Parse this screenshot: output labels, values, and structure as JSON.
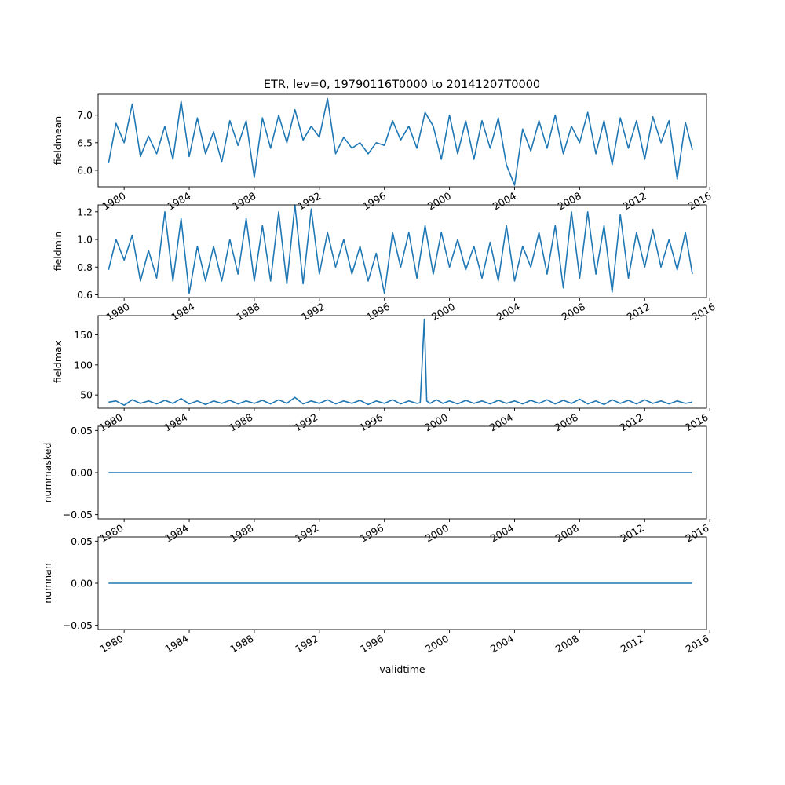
{
  "figure_title": "ETR, lev=0, 19790116T0000 to 20141207T0000",
  "chart_data": [
    {
      "type": "line",
      "ylabel": "fieldmean",
      "xlabel": "",
      "xlim": [
        1978.4,
        2015.8
      ],
      "ylim": [
        5.7,
        7.38
      ],
      "yticks": [
        6.0,
        6.5,
        7.0
      ],
      "yticklabels": [
        "6.0",
        "6.5",
        "7.0"
      ],
      "xticks": [
        1980,
        1984,
        1988,
        1992,
        1996,
        2000,
        2004,
        2008,
        2012,
        2016
      ],
      "xticklabels": [
        "1980",
        "1984",
        "1988",
        "1992",
        "1996",
        "2000",
        "2004",
        "2008",
        "2012",
        "2016"
      ],
      "series": [
        {
          "color": "#1f77b4",
          "x": [
            1979.04,
            1979.5,
            1980.0,
            1980.5,
            1981.0,
            1981.5,
            1982.0,
            1982.5,
            1983.0,
            1983.5,
            1984.0,
            1984.5,
            1985.0,
            1985.5,
            1986.0,
            1986.5,
            1987.0,
            1987.5,
            1988.0,
            1988.5,
            1989.0,
            1989.5,
            1990.0,
            1990.5,
            1991.0,
            1991.5,
            1992.0,
            1992.5,
            1993.0,
            1993.5,
            1994.0,
            1994.5,
            1995.0,
            1995.5,
            1996.0,
            1996.5,
            1997.0,
            1997.5,
            1998.0,
            1998.5,
            1999.0,
            1999.5,
            2000.0,
            2000.5,
            2001.0,
            2001.5,
            2002.0,
            2002.5,
            2003.0,
            2003.5,
            2004.0,
            2004.5,
            2005.0,
            2005.5,
            2006.0,
            2006.5,
            2007.0,
            2007.5,
            2008.0,
            2008.5,
            2009.0,
            2009.5,
            2010.0,
            2010.5,
            2011.0,
            2011.5,
            2012.0,
            2012.5,
            2013.0,
            2013.5,
            2014.0,
            2014.5,
            2014.93
          ],
          "y": [
            6.13,
            6.85,
            6.5,
            7.2,
            6.25,
            6.62,
            6.3,
            6.8,
            6.2,
            7.25,
            6.25,
            6.95,
            6.3,
            6.7,
            6.15,
            6.9,
            6.45,
            6.9,
            5.87,
            6.95,
            6.4,
            7.0,
            6.5,
            7.1,
            6.55,
            6.8,
            6.6,
            7.3,
            6.3,
            6.6,
            6.4,
            6.5,
            6.3,
            6.5,
            6.45,
            6.9,
            6.55,
            6.8,
            6.4,
            7.05,
            6.8,
            6.2,
            7.0,
            6.3,
            6.9,
            6.2,
            6.9,
            6.4,
            6.95,
            6.1,
            5.73,
            6.75,
            6.35,
            6.9,
            6.4,
            7.0,
            6.3,
            6.8,
            6.5,
            7.05,
            6.3,
            6.9,
            6.1,
            6.95,
            6.4,
            6.9,
            6.2,
            6.97,
            6.5,
            6.9,
            5.84,
            6.87,
            6.37
          ]
        }
      ]
    },
    {
      "type": "line",
      "ylabel": "fieldmin",
      "xlabel": "",
      "xlim": [
        1978.4,
        2015.8
      ],
      "ylim": [
        0.58,
        1.25
      ],
      "yticks": [
        0.6,
        0.8,
        1.0,
        1.2
      ],
      "yticklabels": [
        "0.6",
        "0.8",
        "1.0",
        "1.2"
      ],
      "xticks": [
        1980,
        1984,
        1988,
        1992,
        1996,
        2000,
        2004,
        2008,
        2012,
        2016
      ],
      "xticklabels": [
        "1980",
        "1984",
        "1988",
        "1992",
        "1996",
        "2000",
        "2004",
        "2008",
        "2012",
        "2016"
      ],
      "series": [
        {
          "color": "#1f77b4",
          "x": [
            1979.04,
            1979.5,
            1980.0,
            1980.5,
            1981.0,
            1981.5,
            1982.0,
            1982.5,
            1983.0,
            1983.5,
            1984.0,
            1984.5,
            1985.0,
            1985.5,
            1986.0,
            1986.5,
            1987.0,
            1987.5,
            1988.0,
            1988.5,
            1989.0,
            1989.5,
            1990.0,
            1990.5,
            1991.0,
            1991.5,
            1992.0,
            1992.5,
            1993.0,
            1993.5,
            1994.0,
            1994.5,
            1995.0,
            1995.5,
            1996.0,
            1996.5,
            1997.0,
            1997.5,
            1998.0,
            1998.5,
            1999.0,
            1999.5,
            2000.0,
            2000.5,
            2001.0,
            2001.5,
            2002.0,
            2002.5,
            2003.0,
            2003.5,
            2004.0,
            2004.5,
            2005.0,
            2005.5,
            2006.0,
            2006.5,
            2007.0,
            2007.5,
            2008.0,
            2008.5,
            2009.0,
            2009.5,
            2010.0,
            2010.5,
            2011.0,
            2011.5,
            2012.0,
            2012.5,
            2013.0,
            2013.5,
            2014.0,
            2014.5,
            2014.93
          ],
          "y": [
            0.78,
            1.0,
            0.85,
            1.03,
            0.7,
            0.92,
            0.72,
            1.2,
            0.7,
            1.15,
            0.61,
            0.95,
            0.7,
            0.95,
            0.7,
            1.0,
            0.75,
            1.15,
            0.7,
            1.1,
            0.7,
            1.2,
            0.68,
            1.25,
            0.68,
            1.22,
            0.75,
            1.05,
            0.8,
            1.0,
            0.75,
            0.95,
            0.7,
            0.9,
            0.61,
            1.05,
            0.8,
            1.05,
            0.72,
            1.1,
            0.75,
            1.05,
            0.8,
            1.0,
            0.78,
            0.95,
            0.72,
            0.98,
            0.7,
            1.1,
            0.7,
            0.95,
            0.8,
            1.05,
            0.75,
            1.1,
            0.65,
            1.2,
            0.72,
            1.2,
            0.75,
            1.1,
            0.62,
            1.18,
            0.72,
            1.05,
            0.8,
            1.07,
            0.8,
            1.0,
            0.78,
            1.05,
            0.75
          ]
        }
      ]
    },
    {
      "type": "line",
      "ylabel": "fieldmax",
      "xlabel": "",
      "xlim": [
        1978.4,
        2015.8
      ],
      "ylim": [
        28,
        182
      ],
      "yticks": [
        50,
        100,
        150
      ],
      "yticklabels": [
        "50",
        "100",
        "150"
      ],
      "xticks": [
        1980,
        1984,
        1988,
        1992,
        1996,
        2000,
        2004,
        2008,
        2012,
        2016
      ],
      "xticklabels": [
        "1980",
        "1984",
        "1988",
        "1992",
        "1996",
        "2000",
        "2004",
        "2008",
        "2012",
        "2016"
      ],
      "series": [
        {
          "color": "#1f77b4",
          "x": [
            1979.04,
            1979.5,
            1980.0,
            1980.5,
            1981.0,
            1981.5,
            1982.0,
            1982.5,
            1983.0,
            1983.5,
            1984.0,
            1984.5,
            1985.0,
            1985.5,
            1986.0,
            1986.5,
            1987.0,
            1987.5,
            1988.0,
            1988.5,
            1989.0,
            1989.5,
            1990.0,
            1990.5,
            1991.0,
            1991.5,
            1992.0,
            1992.5,
            1993.0,
            1993.5,
            1994.0,
            1994.5,
            1995.0,
            1995.5,
            1996.0,
            1996.5,
            1997.0,
            1997.5,
            1998.0,
            1998.2,
            1998.45,
            1998.6,
            1998.8,
            1999.2,
            1999.6,
            2000.0,
            2000.5,
            2001.0,
            2001.5,
            2002.0,
            2002.5,
            2003.0,
            2003.5,
            2004.0,
            2004.5,
            2005.0,
            2005.5,
            2006.0,
            2006.5,
            2007.0,
            2007.5,
            2008.0,
            2008.5,
            2009.0,
            2009.5,
            2010.0,
            2010.5,
            2011.0,
            2011.5,
            2012.0,
            2012.5,
            2013.0,
            2013.5,
            2014.0,
            2014.5,
            2014.93
          ],
          "y": [
            38,
            40,
            33,
            42,
            36,
            40,
            35,
            41,
            36,
            44,
            35,
            40,
            34,
            40,
            36,
            41,
            35,
            40,
            36,
            41,
            35,
            42,
            36,
            46,
            35,
            40,
            36,
            42,
            35,
            40,
            36,
            41,
            34,
            40,
            36,
            42,
            35,
            40,
            36,
            37,
            176,
            40,
            36,
            42,
            36,
            40,
            35,
            41,
            36,
            40,
            35,
            41,
            36,
            40,
            35,
            41,
            36,
            42,
            35,
            41,
            36,
            43,
            35,
            40,
            34,
            42,
            36,
            41,
            35,
            42,
            36,
            40,
            35,
            40,
            36,
            38
          ]
        }
      ]
    },
    {
      "type": "line",
      "ylabel": "nummasked",
      "xlabel": "",
      "xlim": [
        1978.4,
        2015.8
      ],
      "ylim": [
        -0.055,
        0.055
      ],
      "yticks": [
        -0.05,
        0.0,
        0.05
      ],
      "yticklabels": [
        "−0.05",
        "0.00",
        "0.05"
      ],
      "xticks": [
        1980,
        1984,
        1988,
        1992,
        1996,
        2000,
        2004,
        2008,
        2012,
        2016
      ],
      "xticklabels": [
        "1980",
        "1984",
        "1988",
        "1992",
        "1996",
        "2000",
        "2004",
        "2008",
        "2012",
        "2016"
      ],
      "series": [
        {
          "color": "#1f77b4",
          "x": [
            1979.04,
            2014.93
          ],
          "y": [
            0,
            0
          ]
        }
      ]
    },
    {
      "type": "line",
      "ylabel": "numnan",
      "xlabel": "validtime",
      "xlim": [
        1978.4,
        2015.8
      ],
      "ylim": [
        -0.055,
        0.055
      ],
      "yticks": [
        -0.05,
        0.0,
        0.05
      ],
      "yticklabels": [
        "−0.05",
        "0.00",
        "0.05"
      ],
      "xticks": [
        1980,
        1984,
        1988,
        1992,
        1996,
        2000,
        2004,
        2008,
        2012,
        2016
      ],
      "xticklabels": [
        "1980",
        "1984",
        "1988",
        "1992",
        "1996",
        "2000",
        "2004",
        "2008",
        "2012",
        "2016"
      ],
      "series": [
        {
          "color": "#1f77b4",
          "x": [
            1979.04,
            2014.93
          ],
          "y": [
            0,
            0
          ]
        }
      ]
    }
  ]
}
